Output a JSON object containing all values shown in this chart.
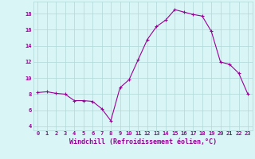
{
  "x": [
    0,
    1,
    2,
    3,
    4,
    5,
    6,
    7,
    8,
    9,
    10,
    11,
    12,
    13,
    14,
    15,
    16,
    17,
    18,
    19,
    20,
    21,
    22,
    23
  ],
  "y": [
    8.2,
    8.3,
    8.1,
    8.0,
    7.2,
    7.2,
    7.1,
    6.2,
    4.7,
    8.8,
    9.8,
    12.3,
    14.8,
    16.4,
    17.2,
    18.5,
    18.2,
    17.9,
    17.7,
    15.8,
    12.0,
    11.7,
    10.6,
    8.0
  ],
  "line_color": "#990099",
  "marker": "+",
  "marker_size": 3,
  "bg_color": "#d9f5f5",
  "grid_color": "#b0d8d8",
  "axis_color": "#990099",
  "xlabel": "Windchill (Refroidissement éolien,°C)",
  "xlabel_fontsize": 6,
  "tick_fontsize": 5,
  "ylabel_ticks": [
    4,
    6,
    8,
    10,
    12,
    14,
    16,
    18
  ],
  "xtick_labels": [
    "0",
    "1",
    "2",
    "3",
    "4",
    "5",
    "6",
    "7",
    "8",
    "9",
    "10",
    "11",
    "12",
    "13",
    "14",
    "15",
    "16",
    "17",
    "18",
    "19",
    "20",
    "21",
    "22",
    "23"
  ],
  "ylim": [
    3.5,
    19.5
  ],
  "xlim": [
    -0.5,
    23.5
  ]
}
